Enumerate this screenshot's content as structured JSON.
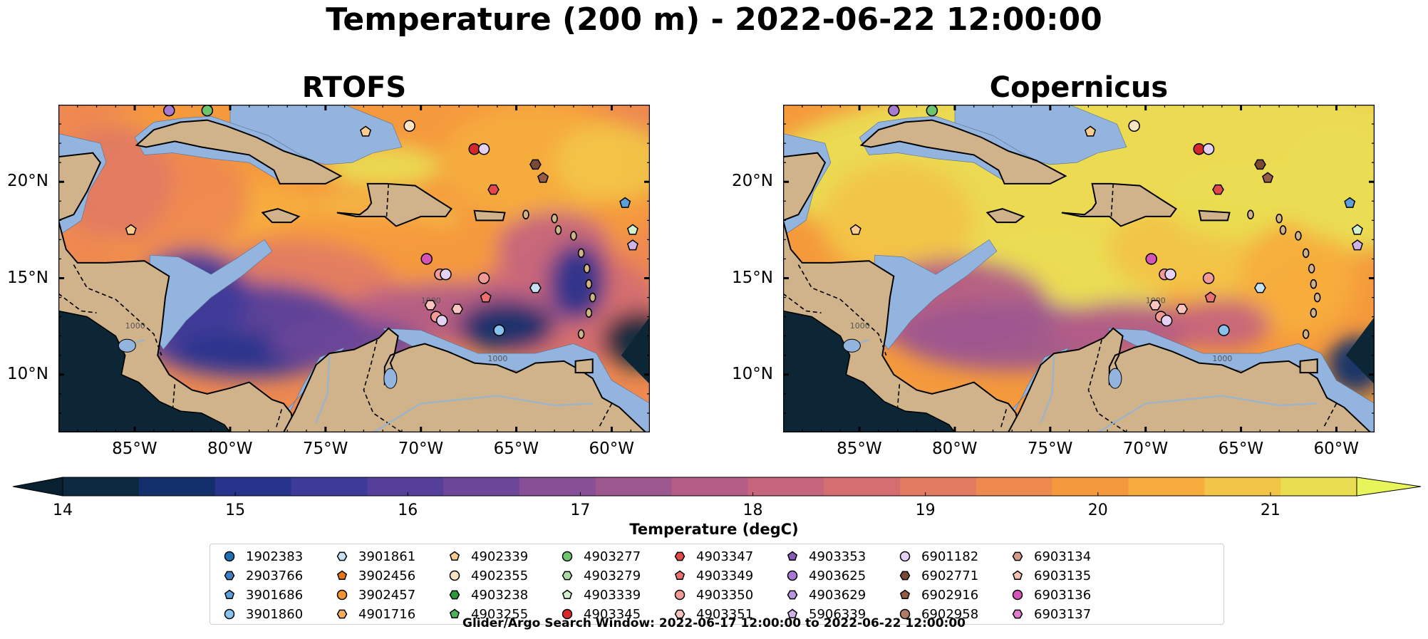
{
  "title": "Temperature (200 m) - 2022-06-22 12:00:00",
  "panels": [
    {
      "name": "RTOFS"
    },
    {
      "name": "Copernicus"
    }
  ],
  "map_extent": {
    "lon": [
      -89,
      -58
    ],
    "lat": [
      7,
      24
    ]
  },
  "lon_ticks": [
    {
      "value": -85,
      "label": "85°W"
    },
    {
      "value": -80,
      "label": "80°W"
    },
    {
      "value": -75,
      "label": "75°W"
    },
    {
      "value": -70,
      "label": "70°W"
    },
    {
      "value": -65,
      "label": "65°W"
    },
    {
      "value": -60,
      "label": "60°W"
    }
  ],
  "lat_ticks": [
    {
      "value": 20,
      "label": "20°N"
    },
    {
      "value": 15,
      "label": "15°N"
    },
    {
      "value": 10,
      "label": "10°N"
    }
  ],
  "contour_labels": [
    "1000",
    "1000",
    "1000"
  ],
  "colorbar": {
    "label": "Temperature (degC)",
    "range": [
      14,
      21.5
    ],
    "ticks": [
      "14",
      "15",
      "16",
      "17",
      "18",
      "19",
      "20",
      "21"
    ],
    "colors": [
      "#0c2a3f",
      "#122f6b",
      "#28348c",
      "#3e3a99",
      "#563f9a",
      "#6c4699",
      "#864f96",
      "#9d578f",
      "#b35d87",
      "#c6657c",
      "#d46e71",
      "#e27b62",
      "#ee8950",
      "#f59a3c",
      "#f7ad3d",
      "#f2c447",
      "#eadd52"
    ],
    "under_color": "#08202f",
    "over_color": "#e8f55a"
  },
  "legend": [
    {
      "id": "1902383",
      "marker": "circle",
      "color": "#1f6fb5"
    },
    {
      "id": "2903766",
      "marker": "hexagon",
      "color": "#3b7fc4"
    },
    {
      "id": "3901686",
      "marker": "pentagon",
      "color": "#5aa0dd"
    },
    {
      "id": "3901860",
      "marker": "circle",
      "color": "#87c3ec"
    },
    {
      "id": "3901861",
      "marker": "hexagon",
      "color": "#c6e2f3"
    },
    {
      "id": "3902456",
      "marker": "pentagon",
      "color": "#e87513"
    },
    {
      "id": "3902457",
      "marker": "circle",
      "color": "#f39232"
    },
    {
      "id": "4901716",
      "marker": "hexagon",
      "color": "#f8ae5c"
    },
    {
      "id": "4902339",
      "marker": "pentagon",
      "color": "#fbcc8f"
    },
    {
      "id": "4902355",
      "marker": "circle",
      "color": "#fde5c4"
    },
    {
      "id": "4903238",
      "marker": "hexagon",
      "color": "#2b9a3f"
    },
    {
      "id": "4903255",
      "marker": "pentagon",
      "color": "#49b55a"
    },
    {
      "id": "4903277",
      "marker": "circle",
      "color": "#6cc46c"
    },
    {
      "id": "4903279",
      "marker": "hexagon",
      "color": "#a6dca0"
    },
    {
      "id": "4903339",
      "marker": "pentagon",
      "color": "#d3f0cd"
    },
    {
      "id": "4903345",
      "marker": "circle",
      "color": "#d6272a"
    },
    {
      "id": "4903347",
      "marker": "hexagon",
      "color": "#e24a4a"
    },
    {
      "id": "4903349",
      "marker": "pentagon",
      "color": "#ee6f6f"
    },
    {
      "id": "4903350",
      "marker": "circle",
      "color": "#f49a96"
    },
    {
      "id": "4903351",
      "marker": "hexagon",
      "color": "#fac5c0"
    },
    {
      "id": "4903353",
      "marker": "pentagon",
      "color": "#8a5ab8"
    },
    {
      "id": "4903625",
      "marker": "circle",
      "color": "#a57ad0"
    },
    {
      "id": "4903629",
      "marker": "hexagon",
      "color": "#b995dc"
    },
    {
      "id": "5906339",
      "marker": "pentagon",
      "color": "#cfb3e8"
    },
    {
      "id": "6901182",
      "marker": "circle",
      "color": "#e4d1f3"
    },
    {
      "id": "6902771",
      "marker": "hexagon",
      "color": "#7a4a34"
    },
    {
      "id": "6902916",
      "marker": "pentagon",
      "color": "#935c45"
    },
    {
      "id": "6902958",
      "marker": "circle",
      "color": "#b07a66"
    },
    {
      "id": "6903134",
      "marker": "hexagon",
      "color": "#d49b89"
    },
    {
      "id": "6903135",
      "marker": "pentagon",
      "color": "#f2c3b3"
    },
    {
      "id": "6903136",
      "marker": "circle",
      "color": "#d654b8"
    },
    {
      "id": "6903137",
      "marker": "hexagon",
      "color": "#e57bd0"
    }
  ],
  "floats": [
    {
      "lon": -83.2,
      "lat": 23.7,
      "color": "#a57ad0",
      "marker": "circle"
    },
    {
      "lon": -81.2,
      "lat": 23.7,
      "color": "#6cc46c",
      "marker": "circle"
    },
    {
      "lon": -72.9,
      "lat": 22.6,
      "color": "#fbcc8f",
      "marker": "pentagon"
    },
    {
      "lon": -70.6,
      "lat": 22.9,
      "color": "#fde5c4",
      "marker": "circle"
    },
    {
      "lon": -67.2,
      "lat": 21.7,
      "color": "#d6272a",
      "marker": "circle"
    },
    {
      "lon": -66.7,
      "lat": 21.7,
      "color": "#e4d1f3",
      "marker": "circle"
    },
    {
      "lon": -64.0,
      "lat": 20.9,
      "color": "#7a4a34",
      "marker": "hexagon"
    },
    {
      "lon": -63.6,
      "lat": 20.2,
      "color": "#935c45",
      "marker": "pentagon"
    },
    {
      "lon": -66.2,
      "lat": 19.6,
      "color": "#e24a4a",
      "marker": "hexagon"
    },
    {
      "lon": -59.3,
      "lat": 18.9,
      "color": "#5aa0dd",
      "marker": "pentagon"
    },
    {
      "lon": -85.2,
      "lat": 17.5,
      "color": "#fbcc8f",
      "marker": "pentagon"
    },
    {
      "lon": -58.9,
      "lat": 17.5,
      "color": "#d3f0cd",
      "marker": "pentagon"
    },
    {
      "lon": -58.9,
      "lat": 16.7,
      "color": "#cfb3e8",
      "marker": "pentagon"
    },
    {
      "lon": -69.7,
      "lat": 16.0,
      "color": "#d654b8",
      "marker": "circle"
    },
    {
      "lon": -69.0,
      "lat": 15.2,
      "color": "#f49a96",
      "marker": "circle"
    },
    {
      "lon": -68.7,
      "lat": 15.2,
      "color": "#e4d1f3",
      "marker": "circle"
    },
    {
      "lon": -66.7,
      "lat": 15.0,
      "color": "#f49a96",
      "marker": "circle"
    },
    {
      "lon": -64.0,
      "lat": 14.5,
      "color": "#c6e2f3",
      "marker": "hexagon"
    },
    {
      "lon": -66.6,
      "lat": 14.0,
      "color": "#ee6f6f",
      "marker": "pentagon"
    },
    {
      "lon": -69.5,
      "lat": 13.6,
      "color": "#fac5c0",
      "marker": "hexagon"
    },
    {
      "lon": -68.1,
      "lat": 13.4,
      "color": "#fac5c0",
      "marker": "hexagon"
    },
    {
      "lon": -69.2,
      "lat": 13.0,
      "color": "#f49a96",
      "marker": "circle"
    },
    {
      "lon": -68.9,
      "lat": 12.8,
      "color": "#e4d1f3",
      "marker": "circle"
    },
    {
      "lon": -65.9,
      "lat": 12.3,
      "color": "#87c3ec",
      "marker": "circle"
    }
  ],
  "search_window": "Glider/Argo Search Window: 2022-06-17 12:00:00 to 2022-06-22 12:00:00"
}
